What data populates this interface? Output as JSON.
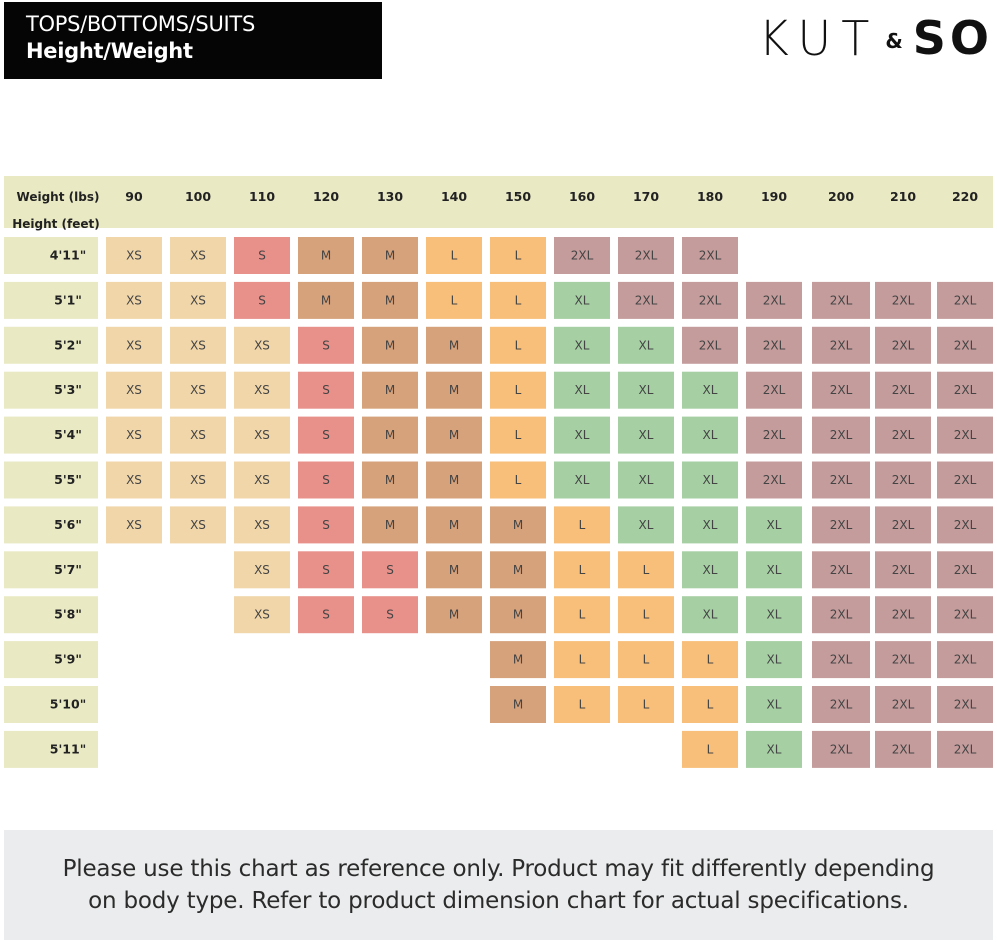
{
  "header": {
    "title_line1": "TOPS/BOTTOMS/SUITS",
    "title_line2": "Height/Weight",
    "logo_kut": "KUT",
    "logo_amp": "&",
    "logo_so": "SO"
  },
  "chart_data": {
    "type": "table",
    "col_axis_label": "Weight (lbs)",
    "row_axis_label": "Height (feet)",
    "weights": [
      "90",
      "100",
      "110",
      "120",
      "130",
      "140",
      "150",
      "160",
      "170",
      "180",
      "190",
      "200",
      "210",
      "220"
    ],
    "heights": [
      "4'11\"",
      "5'1\"",
      "5'2\"",
      "5'3\"",
      "5'4\"",
      "5'5\"",
      "5'6\"",
      "5'7\"",
      "5'8\"",
      "5'9\"",
      "5'10\"",
      "5'11\""
    ],
    "sizes": [
      [
        "XS",
        "XS",
        "S",
        "M",
        "M",
        "L",
        "L",
        "2XL",
        "2XL",
        "2XL",
        "",
        "",
        "",
        ""
      ],
      [
        "XS",
        "XS",
        "S",
        "M",
        "M",
        "L",
        "L",
        "XL",
        "2XL",
        "2XL",
        "2XL",
        "2XL",
        "2XL",
        "2XL"
      ],
      [
        "XS",
        "XS",
        "XS",
        "S",
        "M",
        "M",
        "L",
        "XL",
        "XL",
        "2XL",
        "2XL",
        "2XL",
        "2XL",
        "2XL"
      ],
      [
        "XS",
        "XS",
        "XS",
        "S",
        "M",
        "M",
        "L",
        "XL",
        "XL",
        "XL",
        "2XL",
        "2XL",
        "2XL",
        "2XL"
      ],
      [
        "XS",
        "XS",
        "XS",
        "S",
        "M",
        "M",
        "L",
        "XL",
        "XL",
        "XL",
        "2XL",
        "2XL",
        "2XL",
        "2XL"
      ],
      [
        "XS",
        "XS",
        "XS",
        "S",
        "M",
        "M",
        "L",
        "XL",
        "XL",
        "XL",
        "2XL",
        "2XL",
        "2XL",
        "2XL"
      ],
      [
        "XS",
        "XS",
        "XS",
        "S",
        "M",
        "M",
        "M",
        "L",
        "XL",
        "XL",
        "XL",
        "2XL",
        "2XL",
        "2XL"
      ],
      [
        "",
        "",
        "XS",
        "S",
        "S",
        "M",
        "M",
        "L",
        "L",
        "XL",
        "XL",
        "2XL",
        "2XL",
        "2XL"
      ],
      [
        "",
        "",
        "XS",
        "S",
        "S",
        "M",
        "M",
        "L",
        "L",
        "XL",
        "XL",
        "2XL",
        "2XL",
        "2XL"
      ],
      [
        "",
        "",
        "",
        "",
        "",
        "",
        "M",
        "L",
        "L",
        "L",
        "XL",
        "2XL",
        "2XL",
        "2XL"
      ],
      [
        "",
        "",
        "",
        "",
        "",
        "",
        "M",
        "L",
        "L",
        "L",
        "XL",
        "2XL",
        "2XL",
        "2XL"
      ],
      [
        "",
        "",
        "",
        "",
        "",
        "",
        "",
        "",
        "",
        "L",
        "XL",
        "2XL",
        "2XL",
        "2XL"
      ]
    ],
    "size_colors": {
      "XS": "#f0d6a9",
      "S": "#e8908a",
      "M": "#d6a27c",
      "L": "#f7bf7a",
      "XL": "#a6cfa4",
      "2XL": "#c49c9c"
    },
    "header_bg": "#e9e9c4"
  },
  "footer": {
    "disclaimer": "Please use this chart as reference only. Product may fit differently depending on body type. Refer to product dimension chart for actual specifications."
  }
}
